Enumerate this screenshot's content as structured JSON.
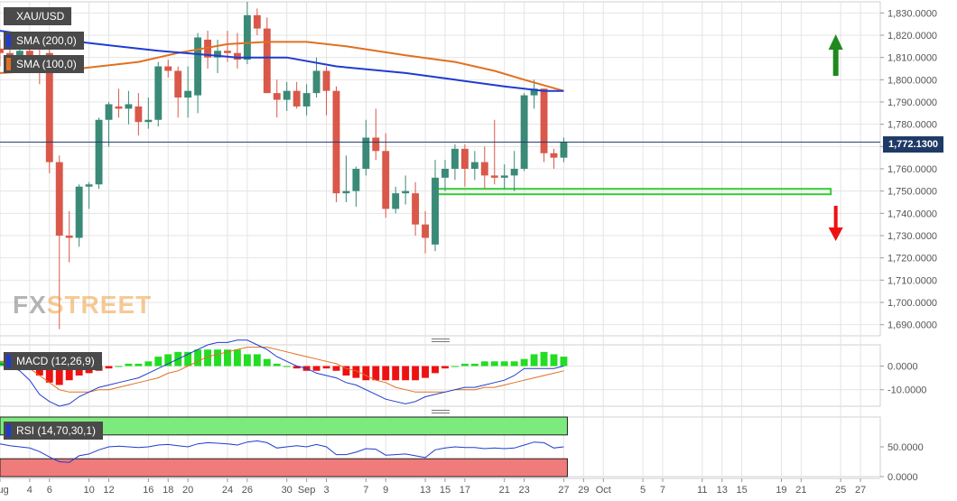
{
  "symbol": "XAU/USD",
  "logo": {
    "fx": "FX",
    "street": "STREET"
  },
  "indicators": {
    "sma200": {
      "label": "SMA (200,0)",
      "color": "#1f3ccf"
    },
    "sma100": {
      "label": "SMA (100,0)",
      "color": "#e07020"
    },
    "macd": {
      "label": "MACD (12,26,9)"
    },
    "rsi": {
      "label": "RSI (14,70,30,1)"
    }
  },
  "current_price": "1,772.1300",
  "colors": {
    "up": "#3a8a77",
    "down": "#d9584a",
    "grid": "#e4e4e4",
    "sma200": "#1f3ccf",
    "sma100": "#e07020",
    "support": "#33cc33",
    "arrow_up": "#1e8a1e",
    "arrow_down": "#ee1111",
    "rsi_overbought": "#7dea7d",
    "rsi_oversold": "#f07b7b"
  },
  "chart_data": {
    "type": "candlestick",
    "price_axis": {
      "min": 1685,
      "max": 1835,
      "ticks": [
        "1,690.0000",
        "1,700.0000",
        "1,710.0000",
        "1,720.0000",
        "1,730.0000",
        "1,740.0000",
        "1,750.0000",
        "1,760.0000",
        "1,770.0000",
        "1,780.0000",
        "1,790.0000",
        "1,800.0000",
        "1,810.0000",
        "1,820.0000",
        "1,830.0000"
      ],
      "tick_values": [
        1690,
        1700,
        1710,
        1720,
        1730,
        1740,
        1750,
        1760,
        1770,
        1780,
        1790,
        1800,
        1810,
        1820,
        1830
      ]
    },
    "x_labels": [
      {
        "label": "Aug",
        "d": 0
      },
      {
        "label": "4",
        "d": 3
      },
      {
        "label": "6",
        "d": 5
      },
      {
        "label": "10",
        "d": 9
      },
      {
        "label": "12",
        "d": 11
      },
      {
        "label": "16",
        "d": 15
      },
      {
        "label": "18",
        "d": 17
      },
      {
        "label": "20",
        "d": 19
      },
      {
        "label": "24",
        "d": 23
      },
      {
        "label": "26",
        "d": 25
      },
      {
        "label": "30",
        "d": 29
      },
      {
        "label": "Sep",
        "d": 31
      },
      {
        "label": "3",
        "d": 33
      },
      {
        "label": "7",
        "d": 37
      },
      {
        "label": "9",
        "d": 39
      },
      {
        "label": "13",
        "d": 43
      },
      {
        "label": "15",
        "d": 45
      },
      {
        "label": "17",
        "d": 47
      },
      {
        "label": "21",
        "d": 51
      },
      {
        "label": "23",
        "d": 53
      },
      {
        "label": "27",
        "d": 57
      },
      {
        "label": "29",
        "d": 59
      },
      {
        "label": "Oct",
        "d": 61
      },
      {
        "label": "5",
        "d": 65
      },
      {
        "label": "7",
        "d": 67
      },
      {
        "label": "11",
        "d": 71
      },
      {
        "label": "13",
        "d": 73
      },
      {
        "label": "15",
        "d": 75
      },
      {
        "label": "19",
        "d": 79
      },
      {
        "label": "21",
        "d": 81
      },
      {
        "label": "25",
        "d": 85
      },
      {
        "label": "27",
        "d": 87
      }
    ],
    "x_domain": [
      0,
      89
    ],
    "candles": [
      {
        "d": 0,
        "o": 1814,
        "h": 1818,
        "l": 1806,
        "c": 1812
      },
      {
        "d": 1,
        "o": 1812,
        "h": 1815,
        "l": 1805,
        "c": 1811
      },
      {
        "d": 2,
        "o": 1811,
        "h": 1816,
        "l": 1809,
        "c": 1813
      },
      {
        "d": 3,
        "o": 1813,
        "h": 1816,
        "l": 1808,
        "c": 1811
      },
      {
        "d": 4,
        "o": 1811,
        "h": 1814,
        "l": 1798,
        "c": 1810
      },
      {
        "d": 5,
        "o": 1812,
        "h": 1814,
        "l": 1758,
        "c": 1763
      },
      {
        "d": 6,
        "o": 1763,
        "h": 1766,
        "l": 1688,
        "c": 1730
      },
      {
        "d": 7,
        "o": 1730,
        "h": 1741,
        "l": 1718,
        "c": 1729
      },
      {
        "d": 8,
        "o": 1729,
        "h": 1753,
        "l": 1725,
        "c": 1752
      },
      {
        "d": 9,
        "o": 1752,
        "h": 1754,
        "l": 1742,
        "c": 1753
      },
      {
        "d": 10,
        "o": 1753,
        "h": 1783,
        "l": 1751,
        "c": 1782
      },
      {
        "d": 11,
        "o": 1782,
        "h": 1790,
        "l": 1770,
        "c": 1789
      },
      {
        "d": 12,
        "o": 1788,
        "h": 1796,
        "l": 1783,
        "c": 1787
      },
      {
        "d": 13,
        "o": 1787,
        "h": 1795,
        "l": 1780,
        "c": 1789
      },
      {
        "d": 14,
        "o": 1788,
        "h": 1794,
        "l": 1775,
        "c": 1781
      },
      {
        "d": 15,
        "o": 1781,
        "h": 1792,
        "l": 1778,
        "c": 1782
      },
      {
        "d": 16,
        "o": 1782,
        "h": 1808,
        "l": 1779,
        "c": 1806
      },
      {
        "d": 17,
        "o": 1806,
        "h": 1809,
        "l": 1801,
        "c": 1804
      },
      {
        "d": 18,
        "o": 1804,
        "h": 1806,
        "l": 1783,
        "c": 1792
      },
      {
        "d": 19,
        "o": 1792,
        "h": 1806,
        "l": 1783,
        "c": 1795
      },
      {
        "d": 20,
        "o": 1793,
        "h": 1821,
        "l": 1785,
        "c": 1819
      },
      {
        "d": 21,
        "o": 1818,
        "h": 1822,
        "l": 1805,
        "c": 1810
      },
      {
        "d": 22,
        "o": 1810,
        "h": 1818,
        "l": 1803,
        "c": 1813
      },
      {
        "d": 23,
        "o": 1813,
        "h": 1822,
        "l": 1808,
        "c": 1812
      },
      {
        "d": 24,
        "o": 1812,
        "h": 1821,
        "l": 1805,
        "c": 1809
      },
      {
        "d": 25,
        "o": 1809,
        "h": 1835,
        "l": 1807,
        "c": 1829
      },
      {
        "d": 26,
        "o": 1829,
        "h": 1832,
        "l": 1820,
        "c": 1823
      },
      {
        "d": 27,
        "o": 1823,
        "h": 1828,
        "l": 1794,
        "c": 1794
      },
      {
        "d": 28,
        "o": 1794,
        "h": 1800,
        "l": 1783,
        "c": 1791
      },
      {
        "d": 29,
        "o": 1791,
        "h": 1799,
        "l": 1786,
        "c": 1795
      },
      {
        "d": 30,
        "o": 1795,
        "h": 1799,
        "l": 1787,
        "c": 1788
      },
      {
        "d": 31,
        "o": 1788,
        "h": 1798,
        "l": 1784,
        "c": 1794
      },
      {
        "d": 32,
        "o": 1794,
        "h": 1810,
        "l": 1792,
        "c": 1804
      },
      {
        "d": 33,
        "o": 1804,
        "h": 1806,
        "l": 1784,
        "c": 1795
      },
      {
        "d": 34,
        "o": 1795,
        "h": 1797,
        "l": 1745,
        "c": 1749
      },
      {
        "d": 35,
        "o": 1749,
        "h": 1766,
        "l": 1745,
        "c": 1750
      },
      {
        "d": 36,
        "o": 1750,
        "h": 1761,
        "l": 1743,
        "c": 1760
      },
      {
        "d": 37,
        "o": 1760,
        "h": 1782,
        "l": 1757,
        "c": 1774
      },
      {
        "d": 38,
        "o": 1774,
        "h": 1787,
        "l": 1764,
        "c": 1768
      },
      {
        "d": 39,
        "o": 1768,
        "h": 1776,
        "l": 1738,
        "c": 1742
      },
      {
        "d": 40,
        "o": 1742,
        "h": 1752,
        "l": 1740,
        "c": 1749
      },
      {
        "d": 41,
        "o": 1749,
        "h": 1757,
        "l": 1744,
        "c": 1750
      },
      {
        "d": 42,
        "o": 1749,
        "h": 1754,
        "l": 1730,
        "c": 1735
      },
      {
        "d": 43,
        "o": 1735,
        "h": 1741,
        "l": 1722,
        "c": 1729
      },
      {
        "d": 44,
        "o": 1726,
        "h": 1764,
        "l": 1723,
        "c": 1756
      },
      {
        "d": 45,
        "o": 1756,
        "h": 1764,
        "l": 1750,
        "c": 1760
      },
      {
        "d": 46,
        "o": 1760,
        "h": 1771,
        "l": 1755,
        "c": 1769
      },
      {
        "d": 47,
        "o": 1769,
        "h": 1771,
        "l": 1752,
        "c": 1760
      },
      {
        "d": 48,
        "o": 1760,
        "h": 1768,
        "l": 1755,
        "c": 1763
      },
      {
        "d": 49,
        "o": 1763,
        "h": 1770,
        "l": 1751,
        "c": 1757
      },
      {
        "d": 50,
        "o": 1757,
        "h": 1782,
        "l": 1753,
        "c": 1756
      },
      {
        "d": 51,
        "o": 1756,
        "h": 1762,
        "l": 1751,
        "c": 1757
      },
      {
        "d": 52,
        "o": 1757,
        "h": 1768,
        "l": 1750,
        "c": 1760
      },
      {
        "d": 53,
        "o": 1760,
        "h": 1794,
        "l": 1759,
        "c": 1793
      },
      {
        "d": 54,
        "o": 1793,
        "h": 1800,
        "l": 1787,
        "c": 1796
      },
      {
        "d": 55,
        "o": 1796,
        "h": 1796,
        "l": 1763,
        "c": 1767
      },
      {
        "d": 56,
        "o": 1767,
        "h": 1769,
        "l": 1760,
        "c": 1765
      },
      {
        "d": 57,
        "o": 1765,
        "h": 1774,
        "l": 1763,
        "c": 1772
      }
    ],
    "sma200": [
      [
        0,
        1822
      ],
      [
        8,
        1817
      ],
      [
        16,
        1813
      ],
      [
        24,
        1810
      ],
      [
        29,
        1810
      ],
      [
        34,
        1806
      ],
      [
        41,
        1803
      ],
      [
        46,
        1800
      ],
      [
        51,
        1797
      ],
      [
        55,
        1795
      ],
      [
        57,
        1795
      ]
    ],
    "sma100": [
      [
        0,
        1803
      ],
      [
        8,
        1805
      ],
      [
        14,
        1808
      ],
      [
        18,
        1812
      ],
      [
        23,
        1816
      ],
      [
        27,
        1817
      ],
      [
        31,
        1817
      ],
      [
        35,
        1815
      ],
      [
        41,
        1811
      ],
      [
        46,
        1808
      ],
      [
        50,
        1804
      ],
      [
        53,
        1800
      ],
      [
        57,
        1795
      ]
    ],
    "support_zone": {
      "from_d": 44,
      "to_d": 84,
      "y_low": 1749,
      "y_high": 1751
    },
    "macd": {
      "axis": {
        "ticks": [
          "0.0000",
          "-10.0000"
        ],
        "tick_values": [
          0,
          -10
        ],
        "min": -17,
        "max": 9
      },
      "histogram": [
        2,
        1,
        0,
        -1,
        -4,
        -7,
        -8,
        -6,
        -4,
        -3,
        -2,
        -1,
        0,
        1,
        1,
        2,
        4,
        5,
        6,
        6,
        7,
        7,
        7,
        7,
        7,
        5,
        5,
        3,
        1,
        0,
        -1,
        -2,
        -2,
        -1,
        -2,
        -4,
        -5,
        -6,
        -6,
        -6,
        -6,
        -6,
        -6,
        -5,
        -3,
        -1,
        0,
        1,
        1,
        2,
        2,
        2,
        2,
        3,
        5,
        6,
        5,
        4
      ],
      "macd_line": [
        1,
        0,
        -2,
        -6,
        -12,
        -15,
        -17,
        -16,
        -13,
        -11,
        -9,
        -8,
        -7,
        -6,
        -5,
        -3,
        -1,
        1,
        3,
        5,
        7,
        9,
        10,
        10,
        11,
        11,
        9,
        7,
        4,
        2,
        0,
        -1,
        -3,
        -4,
        -5,
        -7,
        -8,
        -10,
        -12,
        -14,
        -15,
        -16,
        -15,
        -13,
        -12,
        -11,
        -10,
        -9,
        -9,
        -8,
        -7,
        -6,
        -4,
        -1,
        -1,
        -1,
        -1,
        0
      ],
      "signal_line": [
        2,
        2,
        1,
        -1,
        -4,
        -7,
        -10,
        -11,
        -11,
        -11,
        -10,
        -10,
        -9,
        -8,
        -7,
        -6,
        -5,
        -3,
        -2,
        0,
        2,
        4,
        5,
        6,
        7,
        8,
        8,
        8,
        7,
        6,
        5,
        4,
        3,
        2,
        1,
        -1,
        -2,
        -4,
        -6,
        -7,
        -9,
        -10,
        -11,
        -11,
        -11,
        -11,
        -10,
        -10,
        -10,
        -9,
        -9,
        -8,
        -7,
        -6,
        -5,
        -4,
        -3,
        -2
      ]
    },
    "rsi": {
      "axis": {
        "ticks": [
          "50.0000",
          "0.0000"
        ],
        "tick_values": [
          50,
          0
        ],
        "min": 0,
        "max": 100
      },
      "values": [
        55,
        52,
        50,
        48,
        42,
        33,
        25,
        24,
        35,
        38,
        45,
        50,
        51,
        50,
        49,
        50,
        53,
        54,
        52,
        50,
        55,
        57,
        56,
        55,
        53,
        58,
        60,
        57,
        48,
        50,
        52,
        50,
        54,
        50,
        37,
        37,
        41,
        47,
        46,
        36,
        37,
        38,
        35,
        32,
        45,
        48,
        50,
        49,
        49,
        47,
        48,
        47,
        48,
        53,
        58,
        57,
        48,
        50
      ],
      "overbought": 70,
      "oversold": 30
    }
  }
}
